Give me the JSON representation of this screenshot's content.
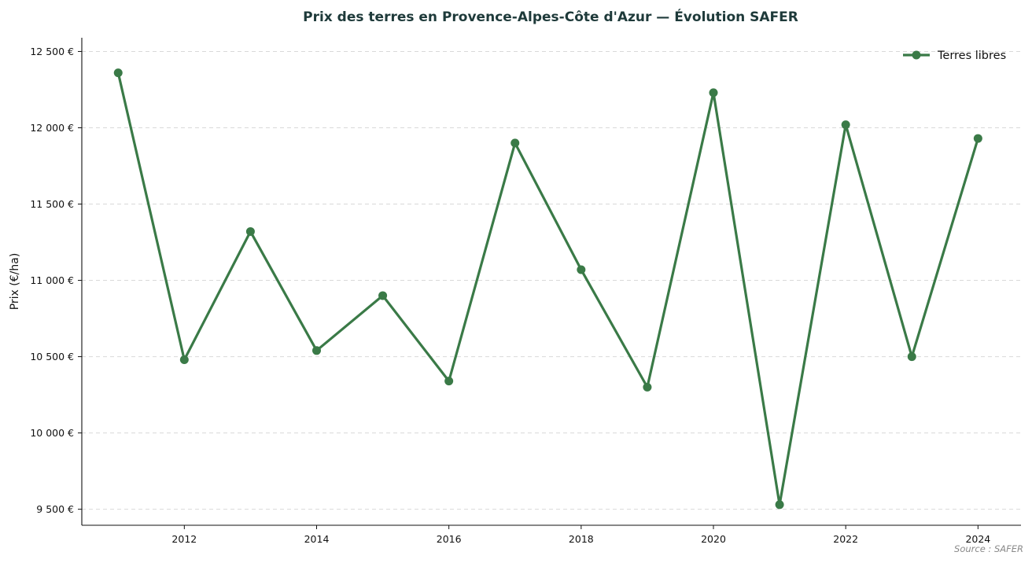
{
  "chart_data": {
    "type": "line",
    "title": "Prix des terres en Provence-Alpes-Côte d'Azur — Évolution SAFER",
    "xlabel": "",
    "ylabel": "Prix (€/ha)",
    "x": [
      2011,
      2012,
      2013,
      2014,
      2015,
      2016,
      2017,
      2018,
      2019,
      2020,
      2021,
      2022,
      2023,
      2024
    ],
    "series": [
      {
        "name": "Terres libres",
        "color": "#3a7a47",
        "values": [
          12360,
          10480,
          11320,
          10540,
          10900,
          10340,
          11900,
          11070,
          10300,
          12230,
          9530,
          12020,
          10500,
          11930
        ]
      }
    ],
    "xlim": [
      2010.45,
      2024.65
    ],
    "ylim": [
      9395,
      12590
    ],
    "xticks": [
      2012,
      2014,
      2016,
      2018,
      2020,
      2022,
      2024
    ],
    "xtick_labels": [
      "2012",
      "2014",
      "2016",
      "2018",
      "2020",
      "2022",
      "2024"
    ],
    "yticks": [
      9500,
      10000,
      10500,
      11000,
      11500,
      12000,
      12500
    ],
    "ytick_labels": [
      "9 500 €",
      "10 000 €",
      "10 500 €",
      "11 000 €",
      "11 500 €",
      "12 000 €",
      "12 500 €"
    ],
    "grid": "y-dashed",
    "legend_position": "top-right",
    "source": "Source : SAFER"
  }
}
